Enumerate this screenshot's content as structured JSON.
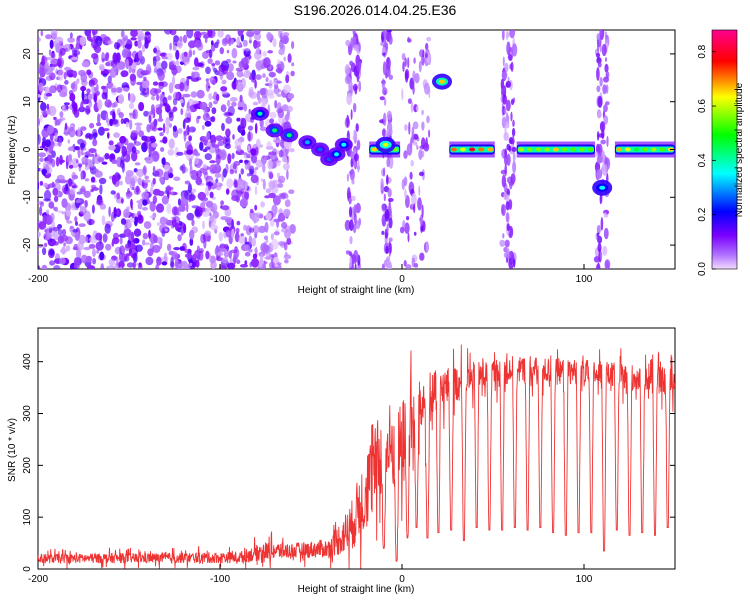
{
  "title": "S196.2026.014.04.25.E36",
  "chart_data": [
    {
      "type": "heatmap",
      "xlabel": "Height of straight line (km)",
      "ylabel": "Frequency (Hz)",
      "xlim": [
        -200,
        150
      ],
      "ylim": [
        -25,
        25
      ],
      "xticks": [
        -200,
        -100,
        0,
        100
      ],
      "yticks": [
        -20,
        -10,
        0,
        10,
        20
      ],
      "colorbar": {
        "label": "Normalized spectral amplitude",
        "range": [
          0,
          0.88
        ],
        "ticks": [
          "0.0",
          "0.2",
          "0.4",
          "0.6",
          "0.8"
        ],
        "colors": [
          "#e8c8ff",
          "#7a00ff",
          "#0000ff",
          "#00ffff",
          "#00ff00",
          "#ffff00",
          "#ff0000",
          "#ff0090"
        ]
      },
      "noise_region": [
        -200,
        -80
      ],
      "drift_track": [
        {
          "x": -78,
          "f": 7.5,
          "a": 0.45
        },
        {
          "x": -70,
          "f": 4.0,
          "a": 0.5
        },
        {
          "x": -62,
          "f": 3.0,
          "a": 0.5
        },
        {
          "x": -52,
          "f": 1.5,
          "a": 0.35
        },
        {
          "x": -45,
          "f": 0.0,
          "a": 0.3
        },
        {
          "x": -40,
          "f": -2.0,
          "a": 0.3
        },
        {
          "x": -36,
          "f": -1.0,
          "a": 0.4
        },
        {
          "x": -32,
          "f": 1.0,
          "a": 0.4
        }
      ],
      "bands": [
        {
          "x0": -18,
          "x1": -1,
          "f": 0,
          "a": 0.6
        },
        {
          "x0": 26,
          "x1": 51,
          "f": 0,
          "a": 0.6
        },
        {
          "x0": 63,
          "x1": 106,
          "f": 0,
          "a": 0.55
        },
        {
          "x0": 117,
          "x1": 150,
          "f": 0,
          "a": 0.5
        }
      ],
      "blobs": [
        {
          "x": 22,
          "f": 14.2,
          "a": 0.75
        },
        {
          "x": 110,
          "f": -8.0,
          "a": 0.4
        },
        {
          "x": -9,
          "f": 1.0,
          "a": 0.7
        }
      ],
      "speckle_strips": [
        {
          "x0": -30,
          "x1": -23
        },
        {
          "x0": -11,
          "x1": -6
        },
        {
          "x0": 0,
          "x1": 16
        },
        {
          "x0": 55,
          "x1": 62
        },
        {
          "x0": 107,
          "x1": 113
        }
      ]
    },
    {
      "type": "line",
      "xlabel": "Height of straight line (km)",
      "ylabel": "SNR (10 * v/v)",
      "xlim": [
        -200,
        150
      ],
      "ylim": [
        0,
        465
      ],
      "xticks": [
        -200,
        -100,
        0,
        100
      ],
      "yticks": [
        0,
        100,
        200,
        300,
        400
      ],
      "series": [
        {
          "name": "SNR",
          "color": "#ee3333",
          "envelope": [
            {
              "x": -200,
              "base": 20,
              "spread": 15
            },
            {
              "x": -90,
              "base": 22,
              "spread": 18
            },
            {
              "x": -75,
              "base": 35,
              "spread": 30
            },
            {
              "x": -60,
              "base": 35,
              "spread": 25
            },
            {
              "x": -40,
              "base": 40,
              "spread": 30
            },
            {
              "x": -28,
              "base": 80,
              "spread": 80
            },
            {
              "x": -20,
              "base": 150,
              "spread": 130
            },
            {
              "x": -10,
              "base": 230,
              "spread": 150
            },
            {
              "x": 0,
              "base": 240,
              "spread": 150
            },
            {
              "x": 10,
              "base": 310,
              "spread": 90
            },
            {
              "x": 20,
              "base": 345,
              "spread": 70
            },
            {
              "x": 40,
              "base": 370,
              "spread": 50
            },
            {
              "x": 60,
              "base": 385,
              "spread": 45
            },
            {
              "x": 100,
              "base": 380,
              "spread": 40
            },
            {
              "x": 150,
              "base": 360,
              "spread": 45
            }
          ],
          "dips": [
            {
              "x": -10,
              "to": 40
            },
            {
              "x": -3,
              "to": 15
            },
            {
              "x": 3,
              "to": 60
            },
            {
              "x": 8,
              "to": 80
            },
            {
              "x": 14,
              "to": 60
            },
            {
              "x": 20,
              "to": 70
            },
            {
              "x": 27,
              "to": 75
            },
            {
              "x": 34,
              "to": 55
            },
            {
              "x": 41,
              "to": 80
            },
            {
              "x": 48,
              "to": 75
            },
            {
              "x": 55,
              "to": 75
            },
            {
              "x": 62,
              "to": 80
            },
            {
              "x": 69,
              "to": 75
            },
            {
              "x": 76,
              "to": 80
            },
            {
              "x": 83,
              "to": 70
            },
            {
              "x": 90,
              "to": 65
            },
            {
              "x": 97,
              "to": 70
            },
            {
              "x": 104,
              "to": 70
            },
            {
              "x": 111,
              "to": 35
            },
            {
              "x": 118,
              "to": 75
            },
            {
              "x": 125,
              "to": 65
            },
            {
              "x": 132,
              "to": 70
            },
            {
              "x": 139,
              "to": 65
            },
            {
              "x": 146,
              "to": 80
            }
          ]
        }
      ]
    }
  ]
}
